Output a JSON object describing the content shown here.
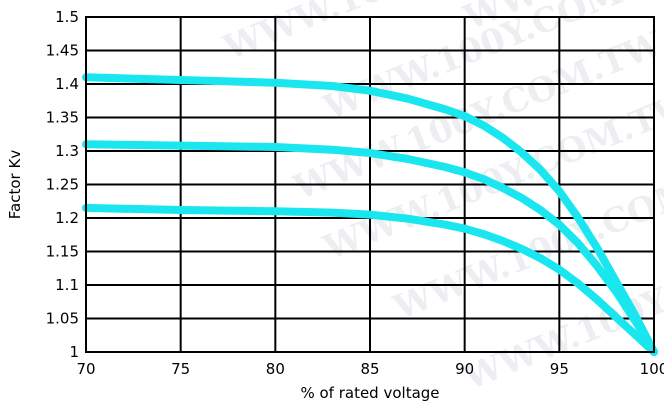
{
  "watermark": "WWW.100Y.COM.TW",
  "colors": {
    "curve": "#19e6ee",
    "grid": "#000000",
    "background": "#ffffff"
  },
  "chart_data": {
    "type": "line",
    "title": "",
    "xlabel": "% of rated voltage",
    "ylabel": "Factor Kv",
    "xlim": [
      70,
      100
    ],
    "ylim": [
      1,
      1.5
    ],
    "grid": true,
    "x_ticks": [
      "70",
      "75",
      "80",
      "85",
      "90",
      "95",
      "100"
    ],
    "y_ticks": [
      "1",
      "1.05",
      "1.1",
      "1.15",
      "1.2",
      "1.25",
      "1.3",
      "1.35",
      "1.4",
      "1.45",
      "1.5"
    ],
    "series": [
      {
        "x": [
          70,
          75,
          80,
          83,
          85,
          87,
          89,
          90,
          91,
          92,
          93,
          94,
          95,
          96,
          97,
          98,
          99,
          100
        ],
        "y": [
          1.41,
          1.406,
          1.402,
          1.397,
          1.39,
          1.378,
          1.362,
          1.352,
          1.338,
          1.32,
          1.298,
          1.272,
          1.24,
          1.2,
          1.155,
          1.105,
          1.055,
          1.0
        ]
      },
      {
        "x": [
          70,
          75,
          80,
          83,
          85,
          87,
          89,
          90,
          91,
          92,
          93,
          94,
          95,
          96,
          97,
          98,
          99,
          100
        ],
        "y": [
          1.31,
          1.308,
          1.306,
          1.302,
          1.297,
          1.288,
          1.276,
          1.268,
          1.258,
          1.245,
          1.23,
          1.212,
          1.19,
          1.162,
          1.128,
          1.09,
          1.047,
          1.0
        ]
      },
      {
        "x": [
          70,
          75,
          80,
          83,
          85,
          87,
          89,
          90,
          91,
          92,
          93,
          94,
          95,
          96,
          97,
          98,
          99,
          100
        ],
        "y": [
          1.215,
          1.212,
          1.21,
          1.208,
          1.205,
          1.199,
          1.19,
          1.184,
          1.176,
          1.166,
          1.154,
          1.14,
          1.123,
          1.102,
          1.078,
          1.052,
          1.026,
          1.0
        ]
      }
    ]
  }
}
